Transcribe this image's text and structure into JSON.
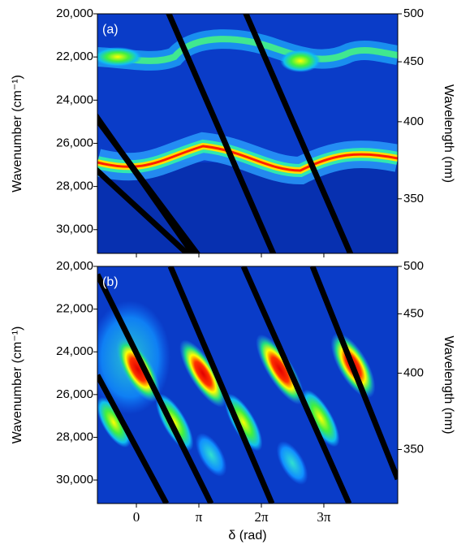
{
  "chart_data": [
    {
      "type": "heatmap",
      "panel_label": "(a)",
      "ylabel": "Wavenumber (cm⁻¹)",
      "y2label": "Wavelength (nm)",
      "ylim": [
        20000,
        31100
      ],
      "yticks": [
        {
          "value": 20000,
          "label": "20,000"
        },
        {
          "value": 22000,
          "label": "22,000"
        },
        {
          "value": 24000,
          "label": "24,000"
        },
        {
          "value": 26000,
          "label": "26,000"
        },
        {
          "value": 28000,
          "label": "28,000"
        },
        {
          "value": 30000,
          "label": "30,000"
        }
      ],
      "y2_scale": "reciprocal",
      "y2ticks": [
        500,
        450,
        400,
        350
      ],
      "xlim": [
        -1.96,
        13.14
      ]
    },
    {
      "type": "heatmap",
      "panel_label": "(b)",
      "ylabel": "Wavenumber (cm⁻¹)",
      "y2label": "Wavelength (nm)",
      "xlabel": "δ (rad)",
      "ylim": [
        20000,
        31100
      ],
      "yticks": [
        {
          "value": 20000,
          "label": "20,000"
        },
        {
          "value": 22000,
          "label": "22,000"
        },
        {
          "value": 24000,
          "label": "24,000"
        },
        {
          "value": 26000,
          "label": "26,000"
        },
        {
          "value": 28000,
          "label": "28,000"
        },
        {
          "value": 30000,
          "label": "30,000"
        }
      ],
      "y2_scale": "reciprocal",
      "y2ticks": [
        500,
        450,
        400,
        350
      ],
      "xlim": [
        -1.96,
        13.14
      ],
      "xticks": [
        0,
        {
          "value": 3.1416,
          "label": "π"
        },
        {
          "value": 6.2832,
          "label": "2π"
        },
        {
          "value": 9.4248,
          "label": "3π"
        }
      ]
    }
  ]
}
